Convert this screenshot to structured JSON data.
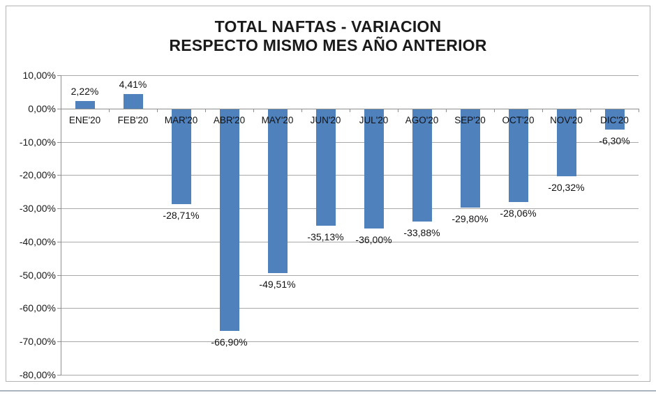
{
  "page": {
    "bottom_edge_color": "#a9b4bf",
    "frame_border_color": "#b3b3b3"
  },
  "chart_data": {
    "type": "bar",
    "title": "TOTAL NAFTAS - VARIACION",
    "subtitle": "RESPECTO MISMO MES AÑO ANTERIOR",
    "categories": [
      "ENE'20",
      "FEB'20",
      "MAR'20",
      "ABR'20",
      "MAY'20",
      "JUN'20",
      "JUL'20",
      "AGO'20",
      "SEP'20",
      "OCT'20",
      "NOV'20",
      "DIC'20"
    ],
    "values": [
      2.22,
      4.41,
      -28.71,
      -66.9,
      -49.51,
      -35.13,
      -36.0,
      -33.88,
      -29.8,
      -28.06,
      -20.32,
      -6.3
    ],
    "data_labels": [
      "2,22%",
      "4,41%",
      "-28,71%",
      "-66,90%",
      "-49,51%",
      "-35,13%",
      "-36,00%",
      "-33,88%",
      "-29,80%",
      "-28,06%",
      "-20,32%",
      "-6,30%"
    ],
    "y_tick_values": [
      10,
      0,
      -10,
      -20,
      -30,
      -40,
      -50,
      -60,
      -70,
      -80
    ],
    "y_tick_labels": [
      "10,00%",
      "0,00%",
      "-10,00%",
      "-20,00%",
      "-30,00%",
      "-40,00%",
      "-50,00%",
      "-60,00%",
      "-70,00%",
      "-80,00%"
    ],
    "ylim": [
      -80,
      10
    ],
    "grid": true,
    "legend": "none",
    "bar_color": "#4F81BD",
    "gridline_color": "#a8a8a8",
    "axis_color": "#8e8e8e",
    "text_color": "#111111"
  }
}
